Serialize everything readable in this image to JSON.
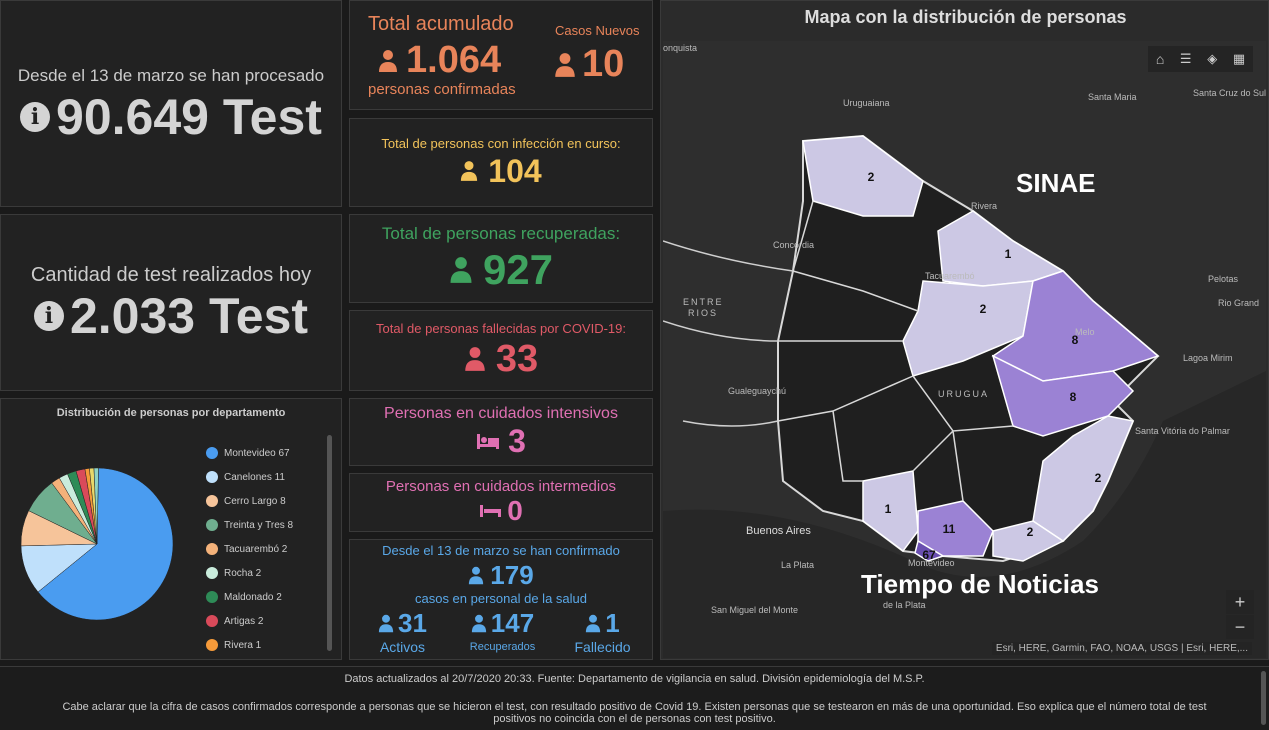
{
  "tests_total": {
    "label": "Desde el 13 de marzo se han procesado",
    "value": "90.649 Test"
  },
  "tests_today": {
    "label": "Cantidad de test realizados hoy",
    "value": "2.033 Test"
  },
  "pie": {
    "title": "Distribución de personas por departamento",
    "legend": [
      {
        "name": "Montevideo",
        "value": "67",
        "color": "#4a9cf0"
      },
      {
        "name": "Canelones",
        "value": "11",
        "color": "#bfe0fb"
      },
      {
        "name": "Cerro Largo",
        "value": "8",
        "color": "#f6c49a"
      },
      {
        "name": "Treinta y Tres",
        "value": "8",
        "color": "#6fae8f"
      },
      {
        "name": "Tacuarembó",
        "value": "2",
        "color": "#f4b27a"
      },
      {
        "name": "Rocha",
        "value": "2",
        "color": "#c9ecdc"
      },
      {
        "name": "Maldonado",
        "value": "2",
        "color": "#2e8b57"
      },
      {
        "name": "Artigas",
        "value": "2",
        "color": "#d94a5a"
      },
      {
        "name": "Rivera",
        "value": "1",
        "color": "#f59a3a"
      }
    ],
    "slices": [
      67,
      11,
      8,
      8,
      2,
      2,
      2,
      2,
      1,
      1,
      1
    ]
  },
  "acumulado": {
    "title": "Total acumulado",
    "value": "1.064",
    "sub": "personas confirmadas",
    "color": "#e8845a"
  },
  "nuevos": {
    "title": "Casos Nuevos",
    "value": "10",
    "color": "#e8845a"
  },
  "en_curso": {
    "title": "Total de personas con infección en curso:",
    "value": "104",
    "color": "#f2c35a"
  },
  "recuperadas": {
    "title": "Total de personas recuperadas:",
    "value": "927",
    "color": "#3fa35f"
  },
  "fallecidas": {
    "title": "Total de personas fallecidas por COVID-19:",
    "value": "33",
    "color": "#e05a67"
  },
  "intensivos": {
    "title": "Personas en cuidados intensivos",
    "value": "3",
    "color": "#e070b3"
  },
  "intermedios": {
    "title": "Personas en cuidados intermedios",
    "value": "0",
    "color": "#e070b3"
  },
  "salud": {
    "title": "Desde el 13 de marzo se han confirmado",
    "value": "179",
    "sub": "casos en personal de la salud",
    "activos": {
      "value": "31",
      "label": "Activos"
    },
    "recuperados": {
      "value": "147",
      "label": "Recuperados"
    },
    "fallecido": {
      "value": "1",
      "label": "Fallecido"
    },
    "color": "#5aa8e8"
  },
  "map": {
    "title": "Mapa con la distribución de personas",
    "watermark1": "SINAE",
    "watermark2": "Tiempo de Noticias",
    "attribution": "Esri, HERE, Garmin, FAO, NOAA, USGS | Esri, HERE,...",
    "zoom_in": "+",
    "zoom_out": "−",
    "places": [
      "onquista",
      "Uruguaiana",
      "Santa Maria",
      "Santa Cruz do Sul",
      "Concordia",
      "Pelotas",
      "Rio Grand",
      "ENTRE",
      "RIOS",
      "Gualeguaychú",
      "URUGUA",
      "Lagoa Mirim",
      "Santa Vitória do Palmar",
      "Buenos Aires",
      "La Plata",
      "San Miguel del Monte",
      "de la Plata",
      "Montevideo",
      "Rivera",
      "Tacuarembó",
      "Melo"
    ],
    "dept_counts": [
      "2",
      "1",
      "2",
      "8",
      "8",
      "2",
      "1",
      "11",
      "2",
      "67"
    ]
  },
  "footer": {
    "line1": "Datos actualizados al 20/7/2020 20:33. Fuente: Departamento de vigilancia en salud. División epidemiología del M.S.P.",
    "line2": "Cabe aclarar que la cifra de casos confirmados corresponde a personas que se hicieron el test, con resultado positivo de Covid 19. Existen personas que se testearon en más de una oportunidad. Eso explica que el número total de test",
    "line3": "positivos no coincida con el de personas con test positivo."
  }
}
